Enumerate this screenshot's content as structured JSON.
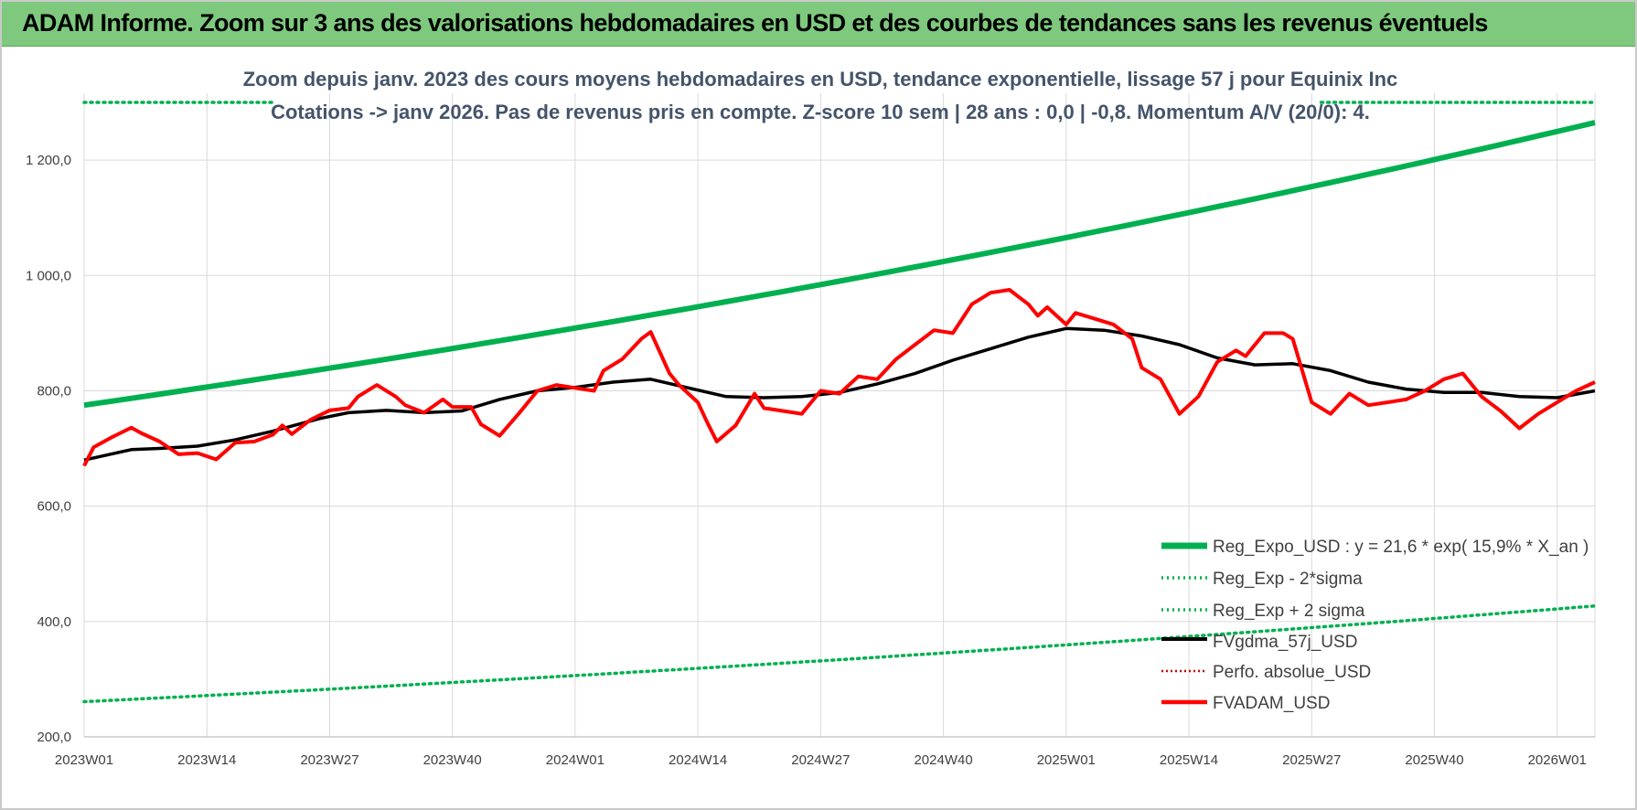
{
  "page_title": "ADAM Informe. Zoom sur 3 ans des valorisations hebdomadaires en USD et des courbes de tendances sans les revenus éventuels",
  "chart_data": {
    "type": "line",
    "subtitle_line1": "Zoom depuis janv. 2023 des cours moyens hebdomadaires en USD, tendance exponentielle, lissage 57 j pour Equinix Inc",
    "subtitle_line2": "Cotations -> janv 2026. Pas de revenus pris en compte. Z-score 10 sem | 28 ans : 0,0 | -0,8. Momentum A/V (20/0): 4.",
    "x_labels": [
      "2023W01",
      "2023W14",
      "2023W27",
      "2023W40",
      "2024W01",
      "2024W14",
      "2024W27",
      "2024W40",
      "2025W01",
      "2025W14",
      "2025W27",
      "2025W40",
      "2026W01"
    ],
    "x_range_weeks": [
      0,
      160
    ],
    "y_ticks": [
      "200,0",
      "400,0",
      "600,0",
      "800,0",
      "1 000,0",
      "1 200,0"
    ],
    "ylim": [
      200,
      1300
    ],
    "grid": "vertical and horizontal",
    "legend_position": "bottom-right",
    "colors": {
      "reg_expo": "#00b050",
      "sigma": "#00b050",
      "fvgdma": "#000000",
      "perfo": "#c00000",
      "fvadam": "#ff0000",
      "subtitle": "#44546a",
      "banner": "#7ec97e"
    },
    "series": [
      {
        "name": "Reg_Expo_USD : y = 21,6 * exp( 15,9% *  X_an )",
        "style": "solid-thick",
        "x": [
          0,
          160
        ],
        "values": [
          775,
          1265
        ],
        "curve": "exponential"
      },
      {
        "name": "Reg_Exp - 2*sigma",
        "style": "dotted",
        "x": [
          0,
          20,
          21
        ],
        "values": [
          1300,
          1300,
          null
        ],
        "segments": [
          [
            0,
            20
          ],
          [
            131,
            160
          ]
        ]
      },
      {
        "name": "Reg_Exp + 2 sigma",
        "style": "dotted",
        "x": [
          0,
          160
        ],
        "values": [
          261,
          427
        ],
        "curve": "exponential"
      },
      {
        "name": "FVgdma_57j_USD",
        "style": "solid",
        "x": [
          0,
          5,
          8,
          12,
          16,
          20,
          25,
          28,
          32,
          36,
          40,
          44,
          48,
          52,
          56,
          60,
          64,
          68,
          72,
          76,
          80,
          84,
          88,
          92,
          96,
          100,
          104,
          108,
          112,
          116,
          120,
          124,
          128,
          132,
          136,
          140,
          144,
          148,
          152,
          156,
          160
        ],
        "values": [
          680,
          698,
          700,
          704,
          715,
          730,
          752,
          762,
          766,
          762,
          765,
          785,
          800,
          806,
          815,
          820,
          805,
          790,
          788,
          790,
          797,
          812,
          830,
          853,
          873,
          893,
          908,
          905,
          895,
          880,
          857,
          845,
          847,
          835,
          815,
          803,
          797,
          797,
          790,
          788,
          800
        ]
      },
      {
        "name": "Perfo. absolue_USD",
        "style": "dotted",
        "x": [],
        "values": []
      },
      {
        "name": "FVADAM_USD",
        "style": "solid",
        "x": [
          0,
          1,
          3,
          5,
          6,
          8,
          10,
          12,
          14,
          16,
          18,
          20,
          21,
          22,
          24,
          26,
          28,
          29,
          31,
          33,
          34,
          36,
          38,
          39,
          41,
          42,
          44,
          46,
          48,
          50,
          52,
          54,
          55,
          57,
          59,
          60,
          62,
          63,
          65,
          66,
          67,
          69,
          71,
          72,
          74,
          76,
          78,
          80,
          82,
          84,
          86,
          88,
          90,
          92,
          94,
          96,
          98,
          100,
          101,
          102,
          104,
          105,
          107,
          109,
          111,
          112,
          114,
          116,
          118,
          120,
          122,
          123,
          125,
          127,
          128,
          130,
          132,
          134,
          136,
          138,
          140,
          142,
          144,
          146,
          148,
          150,
          152,
          154,
          156,
          158,
          160
        ],
        "values": [
          670,
          702,
          720,
          736,
          727,
          712,
          690,
          692,
          681,
          710,
          712,
          724,
          740,
          725,
          750,
          766,
          770,
          790,
          810,
          790,
          775,
          762,
          785,
          772,
          772,
          742,
          722,
          760,
          800,
          810,
          805,
          800,
          835,
          855,
          890,
          902,
          830,
          810,
          780,
          745,
          712,
          740,
          795,
          770,
          765,
          760,
          800,
          795,
          825,
          820,
          855,
          880,
          905,
          900,
          950,
          970,
          975,
          950,
          930,
          945,
          915,
          935,
          925,
          915,
          890,
          840,
          820,
          760,
          790,
          850,
          870,
          860,
          900,
          900,
          890,
          780,
          760,
          795,
          775,
          780,
          785,
          800,
          820,
          830,
          790,
          765,
          735,
          760,
          780,
          800,
          815
        ]
      }
    ]
  }
}
